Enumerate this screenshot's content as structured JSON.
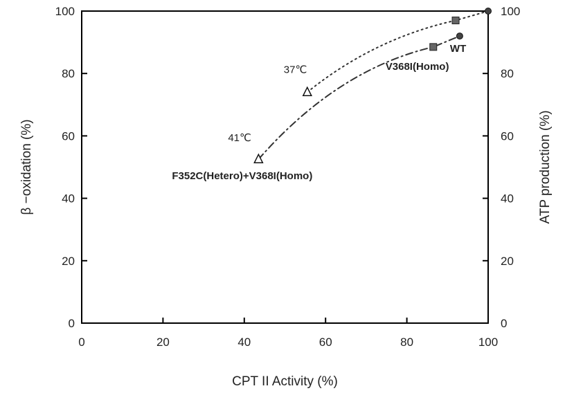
{
  "chart_data": {
    "type": "scatter",
    "xlabel": "CPT II Activity (%)",
    "ylabel": "β −oxidation (%)",
    "y2label": "ATP production (%)",
    "xlim": [
      0,
      100
    ],
    "ylim": [
      0,
      100
    ],
    "y2lim": [
      0,
      100
    ],
    "xticks": [
      0,
      20,
      40,
      60,
      80,
      100
    ],
    "yticks": [
      0,
      20,
      40,
      60,
      80,
      100
    ],
    "y2ticks": [
      0,
      20,
      40,
      60,
      80,
      100
    ],
    "grid": false,
    "colors": {
      "axis": "#000000",
      "marker": "#444444",
      "square": "#666666"
    },
    "series": [
      {
        "curve": "dotted",
        "points": [
          {
            "x": 55.5,
            "y": 74,
            "marker": "open-triangle"
          },
          {
            "x": 92,
            "y": 97,
            "marker": "filled-square"
          },
          {
            "x": 100,
            "y": 100,
            "marker": "filled-circle"
          }
        ]
      },
      {
        "curve": "dash-dot",
        "points": [
          {
            "x": 43.5,
            "y": 52.5,
            "marker": "open-triangle"
          },
          {
            "x": 86.5,
            "y": 88.5,
            "marker": "filled-square"
          },
          {
            "x": 93,
            "y": 92,
            "marker": "filled-circle"
          }
        ]
      }
    ],
    "annotations": [
      {
        "text": "37℃",
        "x": 55.5,
        "y": 74,
        "style": "normal"
      },
      {
        "text": "41℃",
        "x": 43.5,
        "y": 52.5,
        "style": "normal"
      },
      {
        "text": "F352C(Hetero)+V368I(Homo)",
        "x": 43.5,
        "y": 52.5,
        "style": "bold"
      },
      {
        "text": "V368I(Homo)",
        "x": 86.5,
        "y": 88.5,
        "style": "bold"
      },
      {
        "text": "WT",
        "x": 93,
        "y": 92,
        "style": "bold"
      }
    ]
  }
}
